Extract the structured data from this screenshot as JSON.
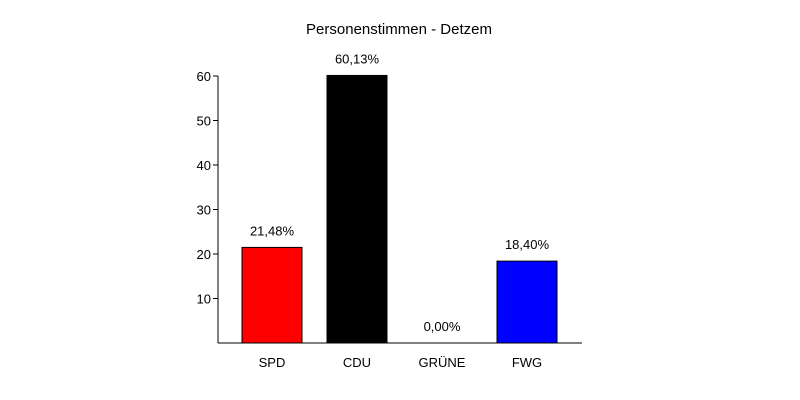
{
  "chart_data": {
    "type": "bar",
    "title": "Personenstimmen - Detzem",
    "xlabel": "",
    "ylabel": "",
    "categories": [
      "SPD",
      "CDU",
      "GRÜNE",
      "FWG"
    ],
    "values": [
      21.48,
      60.13,
      0.0,
      18.4
    ],
    "data_labels": [
      "21,48%",
      "60,13%",
      "0,00%",
      "18,40%"
    ],
    "colors": [
      "#ff0000",
      "#000000",
      "#00a000",
      "#0000ff"
    ],
    "ylim": [
      0,
      60
    ],
    "yticks": [
      10,
      20,
      30,
      40,
      50,
      60
    ],
    "grid": false,
    "legend": "none"
  }
}
